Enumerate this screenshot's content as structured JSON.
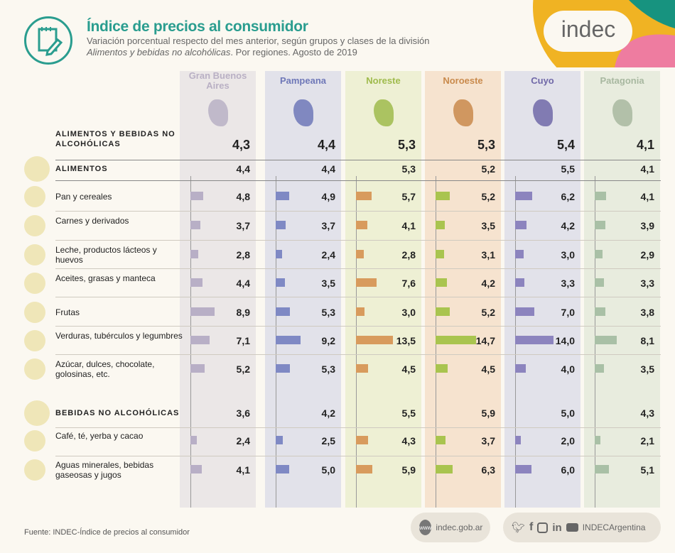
{
  "header": {
    "title": "Índice de precios al consumidor",
    "subtitle_line1": "Variación porcentual respecto del mes anterior, según grupos y clases de la división",
    "subtitle_italic": "Alimentos y bebidas no alcohólicas",
    "subtitle_rest": ". Por regiones. Agosto de 2019",
    "brand": "indec"
  },
  "chart_data": {
    "type": "table",
    "unit": "%",
    "regions": [
      {
        "name": "Gran Buenos Aires",
        "header_color": "#b9b0c4",
        "bg": "#ebe7e7",
        "bar": "#b8afc6"
      },
      {
        "name": "Pampeana",
        "header_color": "#6f78b8",
        "bg": "#e2e2ea",
        "bar": "#7f89c4"
      },
      {
        "name": "Noreste",
        "header_color": "#9fbb4c",
        "bg": "#eef0d4",
        "bar": "#d89b5d"
      },
      {
        "name": "Noroeste",
        "header_color": "#c98a4c",
        "bg": "#f6e3cf",
        "bar": "#a9c44f"
      },
      {
        "name": "Cuyo",
        "header_color": "#7068a8",
        "bg": "#e2e2ea",
        "bar": "#8c84be"
      },
      {
        "name": "Patagonia",
        "header_color": "#a8b8a0",
        "bg": "#e8ecde",
        "bar": "#a9c0a6"
      }
    ],
    "rows": [
      {
        "label": "ALIMENTOS Y BEBIDAS NO ALCOHÓLICAS",
        "kind": "total",
        "values": [
          "4,3",
          "4,4",
          "5,3",
          "5,3",
          "5,4",
          "4,1"
        ]
      },
      {
        "label": "ALIMENTOS",
        "kind": "group",
        "values": [
          "4,4",
          "4,4",
          "5,3",
          "5,2",
          "5,5",
          "4,1"
        ]
      },
      {
        "label": "Pan y cereales",
        "kind": "class",
        "values": [
          4.8,
          4.9,
          5.7,
          5.2,
          6.2,
          4.1
        ]
      },
      {
        "label": "Carnes y derivados",
        "kind": "class",
        "values": [
          3.7,
          3.7,
          4.1,
          3.5,
          4.2,
          3.9
        ]
      },
      {
        "label": "Leche, productos lácteos y huevos",
        "kind": "class",
        "values": [
          2.8,
          2.4,
          2.8,
          3.1,
          3.0,
          2.9
        ]
      },
      {
        "label": "Aceites, grasas y manteca",
        "kind": "class",
        "values": [
          4.4,
          3.5,
          7.6,
          4.2,
          3.3,
          3.3
        ]
      },
      {
        "label": "Frutas",
        "kind": "class",
        "values": [
          8.9,
          5.3,
          3.0,
          5.2,
          7.0,
          3.8
        ]
      },
      {
        "label": "Verduras, tubérculos y legumbres",
        "kind": "class",
        "values": [
          7.1,
          9.2,
          13.5,
          14.7,
          14.0,
          8.1
        ]
      },
      {
        "label": "Azúcar, dulces, chocolate, golosinas, etc.",
        "kind": "class",
        "values": [
          5.2,
          5.3,
          4.5,
          4.5,
          4.0,
          3.5
        ]
      },
      {
        "label": "BEBIDAS NO ALCOHÓLICAS",
        "kind": "group",
        "values": [
          "3,6",
          "4,2",
          "5,5",
          "5,9",
          "5,0",
          "4,3"
        ]
      },
      {
        "label": "Café, té, yerba y cacao",
        "kind": "class",
        "values": [
          2.4,
          2.5,
          4.3,
          3.7,
          2.0,
          2.1
        ]
      },
      {
        "label": "Aguas minerales, bebidas gaseosas y jugos",
        "kind": "class",
        "values": [
          4.1,
          5.0,
          5.9,
          6.3,
          6.0,
          5.1
        ]
      }
    ]
  },
  "footer": {
    "source": "Fuente: INDEC-Índice de precios al consumidor",
    "website": "indec.gob.ar",
    "social_handle": "INDECArgentina",
    "social_icons": [
      "twitter-icon",
      "facebook-icon",
      "instagram-icon",
      "linkedin-icon",
      "youtube-icon"
    ]
  }
}
